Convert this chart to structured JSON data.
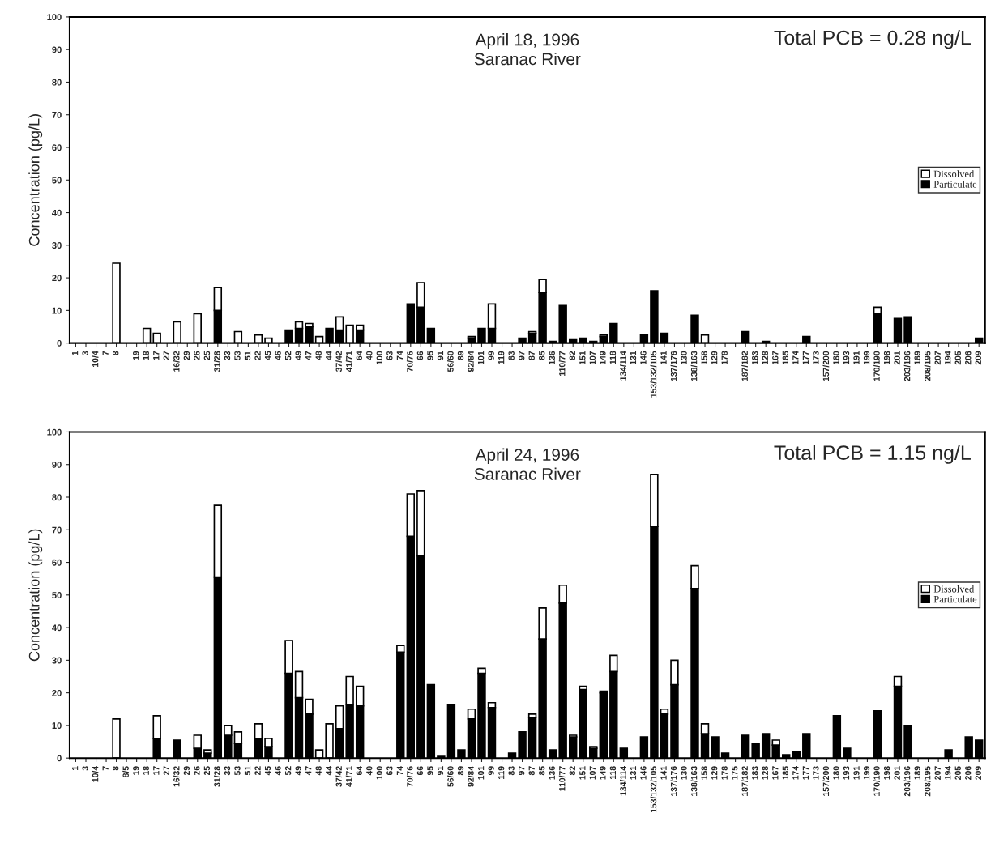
{
  "chart_data": [
    {
      "type": "bar",
      "stacked": true,
      "ylabel": "Concentration (pg/L)",
      "annotations": [
        "April 18, 1996\nSaranac River",
        "Total PCB = 0.28 ng/L"
      ],
      "categories": [
        "1",
        "3",
        "10/4",
        "7",
        "8",
        null,
        "19",
        "18",
        "17",
        "27",
        "16/32",
        "29",
        "26",
        "25",
        "31/28",
        "33",
        "53",
        "51",
        "22",
        "45",
        "46",
        "52",
        "49",
        "47",
        "48",
        "44",
        "37/42",
        "41/71",
        "64",
        "40",
        "100",
        "63",
        "74",
        "70/76",
        "66",
        "95",
        "91",
        "56/60",
        "89",
        "92/84",
        "101",
        "99",
        "119",
        "83",
        "97",
        "87",
        "85",
        "136",
        "110/77",
        "82",
        "151",
        "107",
        "149",
        "118",
        "134/114",
        "131",
        "146",
        "153/132/105",
        "141",
        "137/176",
        "130",
        "138/163",
        "158",
        "129",
        "178",
        null,
        "187/182",
        "183",
        "128",
        "167",
        "185",
        "174",
        "177",
        "173",
        "157/200",
        "180",
        "193",
        "191",
        "199",
        "170/190",
        "198",
        "201",
        "203/196",
        "189",
        "208/195",
        "207",
        "194",
        "205",
        "206",
        "209"
      ],
      "series": [
        {
          "name": "Particulate",
          "color": "#000000",
          "values": [
            null,
            null,
            null,
            null,
            null,
            null,
            null,
            null,
            null,
            null,
            null,
            null,
            null,
            null,
            10,
            null,
            null,
            null,
            null,
            null,
            null,
            4,
            4.5,
            5,
            null,
            4.5,
            4,
            null,
            4,
            null,
            null,
            null,
            null,
            12,
            11,
            4.5,
            null,
            null,
            null,
            1.5,
            4.5,
            4.5,
            null,
            null,
            1.5,
            3,
            15.5,
            0.5,
            11.5,
            1,
            1.5,
            0.5,
            2,
            6,
            null,
            null,
            2.5,
            16,
            3,
            null,
            null,
            8.5,
            null,
            null,
            null,
            null,
            3.5,
            null,
            0.5,
            null,
            null,
            null,
            2,
            null,
            null,
            null,
            null,
            null,
            null,
            9,
            null,
            7.5,
            8,
            null,
            null,
            null,
            null,
            null,
            null,
            1.5
          ]
        },
        {
          "name": "Dissolved",
          "color": "#ffffff",
          "values": [
            null,
            null,
            null,
            null,
            24.5,
            null,
            null,
            4.5,
            3,
            null,
            6.5,
            null,
            9,
            null,
            7,
            null,
            3.5,
            null,
            2.5,
            1.5,
            null,
            null,
            2,
            1,
            2,
            null,
            4,
            5.5,
            1.5,
            null,
            null,
            null,
            null,
            null,
            7.5,
            null,
            null,
            null,
            null,
            0.5,
            null,
            7.5,
            null,
            null,
            null,
            0.5,
            4,
            null,
            null,
            null,
            null,
            null,
            0.5,
            null,
            null,
            null,
            null,
            null,
            null,
            null,
            null,
            null,
            2.5,
            null,
            null,
            null,
            null,
            null,
            null,
            null,
            null,
            null,
            null,
            null,
            null,
            null,
            null,
            null,
            null,
            2,
            null,
            null,
            null,
            null,
            null,
            null,
            null,
            null,
            null,
            null
          ]
        }
      ],
      "ylim": [
        0,
        100
      ],
      "yticks": [
        0,
        10,
        20,
        30,
        40,
        50,
        60,
        70,
        80,
        90,
        100
      ],
      "legend": "right",
      "grid": false
    },
    {
      "type": "bar",
      "stacked": true,
      "ylabel": "Concentration (pg/L)",
      "annotations": [
        "April 24, 1996\nSaranac River",
        "Total PCB = 1.15 ng/L"
      ],
      "categories": [
        "1",
        "3",
        "10/4",
        "7",
        "8",
        "8/5",
        "19",
        "18",
        "17",
        "27",
        "16/32",
        "29",
        "26",
        "25",
        "31/28",
        "33",
        "53",
        "51",
        "22",
        "45",
        "46",
        "52",
        "49",
        "47",
        "48",
        "44",
        "37/42",
        "41/71",
        "64",
        "40",
        "100",
        "63",
        "74",
        "70/76",
        "66",
        "95",
        "91",
        "56/60",
        "89",
        "92/84",
        "101",
        "99",
        "119",
        "83",
        "97",
        "87",
        "85",
        "136",
        "110/77",
        "82",
        "151",
        "107",
        "149",
        "118",
        "134/114",
        "131",
        "146",
        "153/132/105",
        "141",
        "137/176",
        "130",
        "138/163",
        "158",
        "129",
        "178",
        "175",
        "187/182",
        "183",
        "128",
        "167",
        "185",
        "174",
        "177",
        "173",
        "157/200",
        "180",
        "193",
        "191",
        "199",
        "170/190",
        "198",
        "201",
        "203/196",
        "189",
        "208/195",
        "207",
        "194",
        "205",
        "206",
        "209"
      ],
      "series": [
        {
          "name": "Particulate",
          "color": "#000000",
          "values": [
            null,
            null,
            null,
            null,
            null,
            null,
            null,
            null,
            6,
            null,
            5.5,
            null,
            3,
            1.5,
            55.5,
            7,
            4.5,
            null,
            6,
            3.5,
            null,
            26,
            18.5,
            13.5,
            null,
            null,
            9,
            16.5,
            16,
            null,
            null,
            null,
            32.5,
            68,
            62,
            22.5,
            0.5,
            16.5,
            2.5,
            12,
            26,
            15.5,
            null,
            1.5,
            8,
            12.5,
            36.5,
            2.5,
            47.5,
            6.5,
            21,
            3,
            20,
            26.5,
            3,
            null,
            6.5,
            71,
            13.5,
            22.5,
            null,
            52,
            7.5,
            6.5,
            1.5,
            null,
            7,
            4.5,
            7.5,
            4,
            1,
            2,
            7.5,
            null,
            null,
            13,
            3,
            null,
            null,
            14.5,
            null,
            22,
            10,
            null,
            null,
            null,
            2.5,
            null,
            6.5,
            5.5
          ]
        },
        {
          "name": "Dissolved",
          "color": "#ffffff",
          "values": [
            null,
            null,
            null,
            null,
            12,
            null,
            null,
            null,
            7,
            null,
            null,
            null,
            4,
            1,
            22,
            3,
            3.5,
            null,
            4.5,
            2.5,
            null,
            10,
            8,
            4.5,
            2.5,
            10.5,
            7,
            8.5,
            6,
            null,
            null,
            null,
            2,
            13,
            20,
            null,
            null,
            null,
            null,
            3,
            1.5,
            1.5,
            null,
            null,
            null,
            1,
            9.5,
            null,
            5.5,
            0.5,
            1,
            0.5,
            0.5,
            5,
            null,
            null,
            null,
            16,
            1.5,
            7.5,
            null,
            7,
            3,
            null,
            null,
            null,
            null,
            null,
            null,
            1.5,
            null,
            null,
            null,
            null,
            null,
            null,
            null,
            null,
            null,
            null,
            null,
            3,
            null,
            null,
            null,
            null,
            null,
            null,
            null,
            null
          ]
        }
      ],
      "ylim": [
        0,
        100
      ],
      "yticks": [
        0,
        10,
        20,
        30,
        40,
        50,
        60,
        70,
        80,
        90,
        100
      ],
      "legend": "right",
      "grid": false
    }
  ]
}
